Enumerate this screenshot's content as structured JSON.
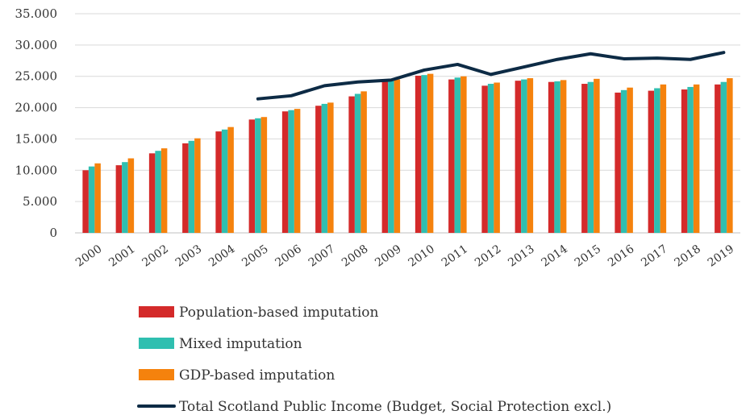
{
  "chart_data": {
    "type": "bar",
    "categories": [
      "2000",
      "2001",
      "2002",
      "2003",
      "2004",
      "2005",
      "2006",
      "2007",
      "2008",
      "2009",
      "2010",
      "2011",
      "2012",
      "2013",
      "2014",
      "2015",
      "2016",
      "2017",
      "2018",
      "2019"
    ],
    "series": [
      {
        "name": "Population-based imputation",
        "type": "bar",
        "color": "#d42a2a",
        "values": [
          10000,
          10800,
          12700,
          14300,
          16200,
          18100,
          19400,
          20300,
          21800,
          24300,
          25100,
          24500,
          23500,
          24300,
          24100,
          23800,
          22400,
          22700,
          22900,
          23700
        ]
      },
      {
        "name": "Mixed imputation",
        "type": "bar",
        "color": "#2fbfb0",
        "values": [
          10600,
          11300,
          13100,
          14700,
          16500,
          18300,
          19600,
          20600,
          22200,
          24400,
          25200,
          24800,
          23800,
          24500,
          24200,
          24100,
          22800,
          23100,
          23300,
          24100
        ]
      },
      {
        "name": "GDP-based imputation",
        "type": "bar",
        "color": "#f5820d",
        "values": [
          11100,
          11900,
          13500,
          15100,
          16900,
          18500,
          19800,
          20800,
          22600,
          24500,
          25400,
          25000,
          24000,
          24700,
          24400,
          24600,
          23200,
          23700,
          23700,
          24700
        ]
      },
      {
        "name": "Total Scotland Public Income (Budget, Social Protection excl.)",
        "type": "line",
        "color": "#0d2b45",
        "values": [
          null,
          null,
          null,
          null,
          null,
          21400,
          21900,
          23500,
          24100,
          24400,
          26000,
          26900,
          25300,
          26500,
          27700,
          28600,
          27800,
          27900,
          27700,
          28800
        ]
      }
    ],
    "ylim": [
      0,
      35000
    ],
    "yticks": [
      "0",
      "5.000",
      "10.000",
      "15.000",
      "20.000",
      "25.000",
      "30.000",
      "35.000"
    ],
    "ytick_values": [
      0,
      5000,
      10000,
      15000,
      20000,
      25000,
      30000,
      35000
    ],
    "grid": true,
    "legend_position": "bottom",
    "title": "",
    "xlabel": "",
    "ylabel": ""
  }
}
